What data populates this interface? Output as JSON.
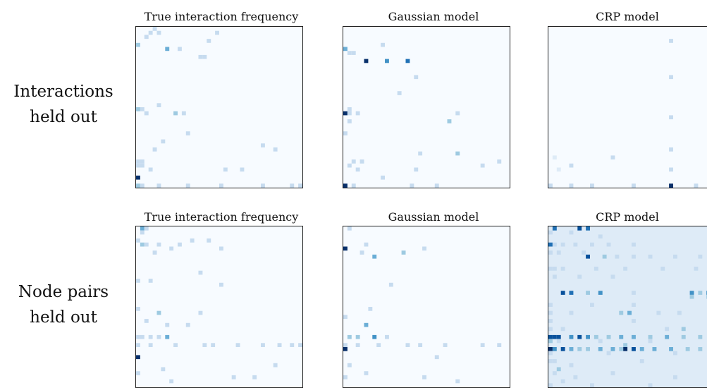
{
  "rows": [
    {
      "label_line1": "Interactions",
      "label_line2": "held out"
    },
    {
      "label_line1": "Node pairs",
      "label_line2": "held out"
    }
  ],
  "colorscale": [
    "#f7fbff",
    "#deebf7",
    "#c6dbef",
    "#9ecae1",
    "#6baed6",
    "#4292c6",
    "#2171b5",
    "#08519c",
    "#08306b"
  ],
  "chart_data": [
    {
      "type": "heatmap",
      "title": "True interaction frequency",
      "grid_size": 40,
      "background": 0.03,
      "cells": [
        [
          0,
          4,
          0.35
        ],
        [
          2,
          2,
          0.25
        ],
        [
          3,
          1,
          0.3
        ],
        [
          4,
          0,
          0.25
        ],
        [
          5,
          1,
          0.2
        ],
        [
          7,
          5,
          0.45
        ],
        [
          10,
          5,
          0.3
        ],
        [
          15,
          7,
          0.3
        ],
        [
          16,
          7,
          0.3
        ],
        [
          17,
          3,
          0.2
        ],
        [
          19,
          1,
          0.2
        ],
        [
          5,
          19,
          0.25
        ],
        [
          11,
          21,
          0.3
        ],
        [
          0,
          20,
          0.35
        ],
        [
          1,
          20,
          0.25
        ],
        [
          2,
          21,
          0.2
        ],
        [
          9,
          21,
          0.4
        ],
        [
          12,
          26,
          0.25
        ],
        [
          6,
          28,
          0.2
        ],
        [
          4,
          30,
          0.3
        ],
        [
          30,
          29,
          0.25
        ],
        [
          33,
          30,
          0.2
        ],
        [
          0,
          33,
          0.25
        ],
        [
          1,
          33,
          0.25
        ],
        [
          3,
          35,
          0.2
        ],
        [
          0,
          34,
          0.3
        ],
        [
          21,
          35,
          0.2
        ],
        [
          25,
          35,
          0.3
        ],
        [
          1,
          34,
          0.25
        ],
        [
          0,
          37,
          1.0
        ],
        [
          0,
          39,
          0.35
        ],
        [
          1,
          39,
          0.3
        ],
        [
          5,
          39,
          0.2
        ],
        [
          12,
          39,
          0.25
        ],
        [
          20,
          39,
          0.2
        ],
        [
          30,
          39,
          0.25
        ],
        [
          37,
          39,
          0.2
        ],
        [
          39,
          39,
          0.25
        ]
      ]
    },
    {
      "type": "heatmap",
      "title": "Gaussian model",
      "grid_size": 40,
      "background": 0.03,
      "cells": [
        [
          0,
          5,
          0.55
        ],
        [
          1,
          6,
          0.3
        ],
        [
          2,
          6,
          0.3
        ],
        [
          5,
          8,
          1.0
        ],
        [
          10,
          8,
          0.6
        ],
        [
          15,
          8,
          0.7
        ],
        [
          9,
          4,
          0.25
        ],
        [
          1,
          20,
          0.25
        ],
        [
          0,
          21,
          0.95
        ],
        [
          1,
          21,
          0.3
        ],
        [
          3,
          21,
          0.3
        ],
        [
          1,
          23,
          0.3
        ],
        [
          13,
          16,
          0.3
        ],
        [
          17,
          12,
          0.25
        ],
        [
          27,
          21,
          0.2
        ],
        [
          25,
          23,
          0.35
        ],
        [
          0,
          26,
          0.2
        ],
        [
          18,
          31,
          0.3
        ],
        [
          27,
          31,
          0.35
        ],
        [
          37,
          33,
          0.3
        ],
        [
          2,
          33,
          0.3
        ],
        [
          4,
          33,
          0.3
        ],
        [
          1,
          34,
          0.25
        ],
        [
          3,
          35,
          0.25
        ],
        [
          17,
          35,
          0.25
        ],
        [
          0,
          39,
          1.0
        ],
        [
          2,
          39,
          0.3
        ],
        [
          9,
          37,
          0.25
        ],
        [
          16,
          39,
          0.2
        ],
        [
          22,
          39,
          0.2
        ],
        [
          33,
          34,
          0.25
        ]
      ]
    },
    {
      "type": "heatmap",
      "title": "CRP model",
      "grid_size": 40,
      "background": 0.06,
      "cells": [
        [
          29,
          3,
          0.3
        ],
        [
          29,
          12,
          0.3
        ],
        [
          29,
          22,
          0.25
        ],
        [
          29,
          30,
          0.3
        ],
        [
          29,
          35,
          0.3
        ],
        [
          15,
          32,
          0.2
        ],
        [
          5,
          34,
          0.2
        ],
        [
          1,
          32,
          0.15
        ],
        [
          2,
          35,
          0.15
        ],
        [
          0,
          39,
          0.25
        ],
        [
          5,
          39,
          0.25
        ],
        [
          10,
          39,
          0.25
        ],
        [
          20,
          39,
          0.2
        ],
        [
          29,
          39,
          1.0
        ],
        [
          35,
          39,
          0.25
        ],
        [
          39,
          39,
          0.25
        ]
      ]
    },
    {
      "type": "heatmap",
      "title": "True interaction frequency",
      "grid_size": 40,
      "background": 0.03,
      "cells": [
        [
          1,
          0,
          0.45
        ],
        [
          1,
          1,
          0.3
        ],
        [
          2,
          0,
          0.2
        ],
        [
          0,
          3,
          0.25
        ],
        [
          1,
          4,
          0.35
        ],
        [
          2,
          4,
          0.3
        ],
        [
          5,
          4,
          0.25
        ],
        [
          4,
          6,
          0.3
        ],
        [
          8,
          5,
          0.2
        ],
        [
          10,
          4,
          0.25
        ],
        [
          13,
          3,
          0.2
        ],
        [
          17,
          3,
          0.2
        ],
        [
          20,
          5,
          0.2
        ],
        [
          15,
          11,
          0.2
        ],
        [
          0,
          13,
          0.25
        ],
        [
          3,
          13,
          0.2
        ],
        [
          20,
          14,
          0.3
        ],
        [
          0,
          20,
          0.2
        ],
        [
          2,
          23,
          0.25
        ],
        [
          5,
          21,
          0.35
        ],
        [
          7,
          24,
          0.3
        ],
        [
          12,
          24,
          0.25
        ],
        [
          15,
          21,
          0.2
        ],
        [
          0,
          27,
          0.25
        ],
        [
          1,
          27,
          0.3
        ],
        [
          3,
          27,
          0.3
        ],
        [
          5,
          27,
          0.25
        ],
        [
          7,
          27,
          0.45
        ],
        [
          0,
          29,
          0.25
        ],
        [
          3,
          29,
          0.25
        ],
        [
          9,
          29,
          0.2
        ],
        [
          16,
          29,
          0.2
        ],
        [
          18,
          29,
          0.25
        ],
        [
          24,
          29,
          0.2
        ],
        [
          30,
          29,
          0.2
        ],
        [
          34,
          29,
          0.2
        ],
        [
          37,
          29,
          0.2
        ],
        [
          39,
          29,
          0.2
        ],
        [
          0,
          32,
          1.0
        ],
        [
          6,
          35,
          0.2
        ],
        [
          0,
          36,
          0.3
        ],
        [
          33,
          34,
          0.2
        ],
        [
          23,
          37,
          0.2
        ],
        [
          8,
          38,
          0.25
        ],
        [
          28,
          37,
          0.25
        ]
      ]
    },
    {
      "type": "heatmap",
      "title": "Gaussian model",
      "grid_size": 40,
      "background": 0.03,
      "cells": [
        [
          0,
          5,
          1.0
        ],
        [
          1,
          0,
          0.2
        ],
        [
          4,
          6,
          0.3
        ],
        [
          7,
          7,
          0.45
        ],
        [
          14,
          6,
          0.35
        ],
        [
          5,
          4,
          0.2
        ],
        [
          19,
          5,
          0.2
        ],
        [
          11,
          14,
          0.3
        ],
        [
          6,
          20,
          0.25
        ],
        [
          0,
          22,
          0.25
        ],
        [
          5,
          24,
          0.55
        ],
        [
          1,
          27,
          0.35
        ],
        [
          3,
          27,
          0.4
        ],
        [
          7,
          27,
          0.6
        ],
        [
          10,
          27,
          0.3
        ],
        [
          0,
          29,
          0.3
        ],
        [
          3,
          29,
          0.25
        ],
        [
          8,
          29,
          0.25
        ],
        [
          15,
          29,
          0.25
        ],
        [
          18,
          29,
          0.25
        ],
        [
          24,
          29,
          0.2
        ],
        [
          33,
          29,
          0.2
        ],
        [
          37,
          29,
          0.25
        ],
        [
          0,
          30,
          1.0
        ],
        [
          1,
          34,
          0.25
        ],
        [
          22,
          32,
          0.2
        ],
        [
          5,
          36,
          0.2
        ],
        [
          0,
          37,
          0.25
        ],
        [
          19,
          37,
          0.25
        ],
        [
          27,
          38,
          0.2
        ]
      ]
    },
    {
      "type": "heatmap",
      "title": "CRP model",
      "grid_size": 40,
      "background": 0.07,
      "cells": [
        [
          1,
          0,
          0.75
        ],
        [
          7,
          0,
          0.9
        ],
        [
          9,
          0,
          0.8
        ],
        [
          0,
          1,
          0.3
        ],
        [
          5,
          1,
          0.25
        ],
        [
          12,
          2,
          0.3
        ],
        [
          0,
          4,
          0.8
        ],
        [
          1,
          4,
          0.3
        ],
        [
          3,
          4,
          0.3
        ],
        [
          6,
          4,
          0.3
        ],
        [
          10,
          4,
          0.25
        ],
        [
          14,
          4,
          0.3
        ],
        [
          20,
          4,
          0.25
        ],
        [
          0,
          6,
          0.3
        ],
        [
          2,
          6,
          0.3
        ],
        [
          8,
          6,
          0.25
        ],
        [
          9,
          7,
          0.85
        ],
        [
          13,
          7,
          0.35
        ],
        [
          16,
          7,
          0.3
        ],
        [
          20,
          7,
          0.3
        ],
        [
          24,
          7,
          0.25
        ],
        [
          30,
          7,
          0.3
        ],
        [
          36,
          7,
          0.25
        ],
        [
          0,
          10,
          0.3
        ],
        [
          1,
          10,
          0.25
        ],
        [
          3,
          10,
          0.25
        ],
        [
          11,
          10,
          0.3
        ],
        [
          18,
          10,
          0.3
        ],
        [
          27,
          10,
          0.25
        ],
        [
          35,
          10,
          0.25
        ],
        [
          1,
          12,
          0.3
        ],
        [
          7,
          12,
          0.25
        ],
        [
          15,
          12,
          0.25
        ],
        [
          3,
          16,
          0.85
        ],
        [
          5,
          16,
          0.7
        ],
        [
          9,
          16,
          0.4
        ],
        [
          12,
          16,
          0.6
        ],
        [
          20,
          16,
          0.3
        ],
        [
          34,
          16,
          0.6
        ],
        [
          36,
          16,
          0.35
        ],
        [
          38,
          16,
          0.65
        ],
        [
          34,
          17,
          0.35
        ],
        [
          38,
          17,
          0.35
        ],
        [
          0,
          19,
          0.3
        ],
        [
          10,
          19,
          0.3
        ],
        [
          20,
          19,
          0.3
        ],
        [
          0,
          21,
          0.3
        ],
        [
          5,
          21,
          0.25
        ],
        [
          17,
          21,
          0.4
        ],
        [
          19,
          21,
          0.5
        ],
        [
          26,
          21,
          0.3
        ],
        [
          31,
          21,
          0.3
        ],
        [
          0,
          23,
          0.3
        ],
        [
          20,
          23,
          0.25
        ],
        [
          0,
          25,
          0.3
        ],
        [
          3,
          25,
          0.3
        ],
        [
          28,
          25,
          0.25
        ],
        [
          32,
          25,
          0.4
        ],
        [
          0,
          27,
          0.9
        ],
        [
          1,
          27,
          0.85
        ],
        [
          2,
          27,
          0.9
        ],
        [
          5,
          27,
          0.6
        ],
        [
          7,
          27,
          0.9
        ],
        [
          9,
          27,
          0.6
        ],
        [
          11,
          27,
          0.4
        ],
        [
          14,
          27,
          0.4
        ],
        [
          17,
          27,
          0.45
        ],
        [
          20,
          27,
          0.45
        ],
        [
          24,
          27,
          0.4
        ],
        [
          28,
          27,
          0.45
        ],
        [
          32,
          27,
          0.4
        ],
        [
          36,
          27,
          0.4
        ],
        [
          39,
          27,
          0.45
        ],
        [
          0,
          28,
          0.35
        ],
        [
          2,
          28,
          0.3
        ],
        [
          12,
          28,
          0.3
        ],
        [
          24,
          28,
          0.3
        ],
        [
          18,
          29,
          0.35
        ],
        [
          0,
          30,
          1.0
        ],
        [
          1,
          30,
          0.6
        ],
        [
          3,
          30,
          0.9
        ],
        [
          5,
          30,
          0.55
        ],
        [
          7,
          30,
          0.4
        ],
        [
          9,
          30,
          0.4
        ],
        [
          12,
          30,
          0.45
        ],
        [
          15,
          30,
          0.45
        ],
        [
          17,
          30,
          0.4
        ],
        [
          18,
          30,
          1.0
        ],
        [
          20,
          30,
          0.85
        ],
        [
          22,
          30,
          0.5
        ],
        [
          25,
          30,
          0.45
        ],
        [
          29,
          30,
          0.45
        ],
        [
          33,
          30,
          0.4
        ],
        [
          36,
          30,
          0.4
        ],
        [
          39,
          30,
          0.45
        ],
        [
          0,
          31,
          0.3
        ],
        [
          14,
          31,
          0.3
        ],
        [
          30,
          31,
          0.3
        ],
        [
          0,
          33,
          0.3
        ],
        [
          1,
          33,
          0.25
        ],
        [
          5,
          34,
          0.3
        ],
        [
          22,
          33,
          0.25
        ],
        [
          2,
          35,
          0.4
        ],
        [
          1,
          36,
          0.3
        ],
        [
          6,
          37,
          0.3
        ],
        [
          15,
          36,
          0.25
        ],
        [
          30,
          37,
          0.3
        ],
        [
          3,
          38,
          0.3
        ],
        [
          0,
          39,
          0.3
        ],
        [
          10,
          39,
          0.3
        ],
        [
          24,
          39,
          0.3
        ]
      ]
    }
  ]
}
